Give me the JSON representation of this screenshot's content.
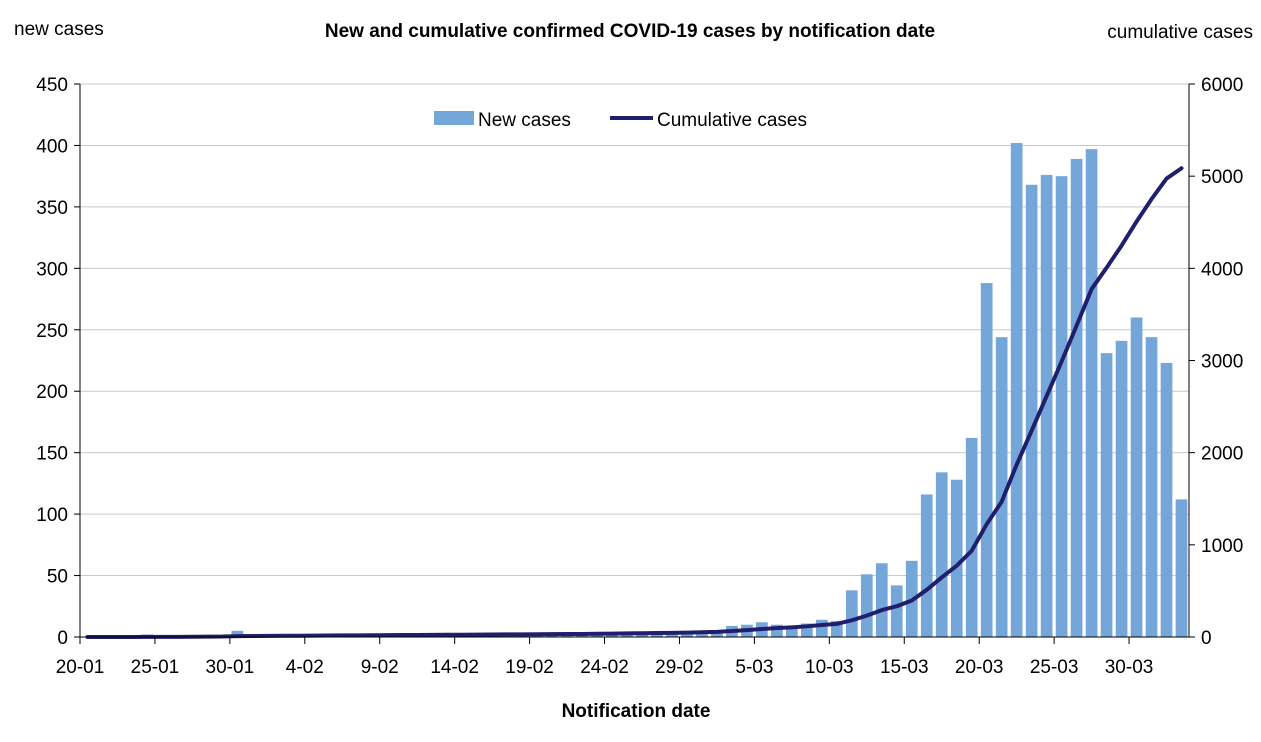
{
  "chart_data": {
    "type": "bar+line",
    "title": "New and cumulative confirmed COVID-19 cases by notification date",
    "xlabel": "Notification date",
    "ylabel_left": "new cases",
    "ylabel_right": "cumulative cases",
    "ylim_left": [
      0,
      450
    ],
    "ylim_right": [
      0,
      6000
    ],
    "yticks_left": [
      "0",
      "50",
      "100",
      "150",
      "200",
      "250",
      "300",
      "350",
      "400",
      "450"
    ],
    "yticks_right": [
      "0",
      "1000",
      "2000",
      "3000",
      "4000",
      "5000",
      "6000"
    ],
    "grid": true,
    "legend_position": "top-center",
    "x": [
      "20-01",
      "21-01",
      "22-01",
      "23-01",
      "24-01",
      "25-01",
      "26-01",
      "27-01",
      "28-01",
      "29-01",
      "30-01",
      "31-01",
      "01-02",
      "02-02",
      "03-02",
      "04-02",
      "05-02",
      "06-02",
      "07-02",
      "08-02",
      "09-02",
      "10-02",
      "11-02",
      "12-02",
      "13-02",
      "14-02",
      "15-02",
      "16-02",
      "17-02",
      "18-02",
      "19-02",
      "20-02",
      "21-02",
      "22-02",
      "23-02",
      "24-02",
      "25-02",
      "26-02",
      "27-02",
      "28-02",
      "29-02",
      "01-03",
      "02-03",
      "03-03",
      "04-03",
      "05-03",
      "06-03",
      "07-03",
      "08-03",
      "09-03",
      "10-03",
      "11-03",
      "12-03",
      "13-03",
      "14-03",
      "15-03",
      "16-03",
      "17-03",
      "18-03",
      "19-03",
      "20-03",
      "21-03",
      "22-03",
      "23-03",
      "24-03",
      "25-03",
      "26-03",
      "27-03",
      "28-03",
      "29-03",
      "30-03",
      "31-03",
      "01-04",
      "02-04"
    ],
    "xtick_labels": [
      "20-01",
      "25-01",
      "30-01",
      "4-02",
      "9-02",
      "14-02",
      "19-02",
      "24-02",
      "29-02",
      "5-03",
      "10-03",
      "15-03",
      "20-03",
      "25-03",
      "30-03"
    ],
    "series": [
      {
        "name": "New cases",
        "type": "bar",
        "axis": "left",
        "color": "#75a6d9",
        "values": [
          0,
          0,
          0,
          0,
          2,
          0,
          0,
          1,
          1,
          1,
          5,
          1,
          1,
          1,
          1,
          1,
          1,
          1,
          1,
          1,
          1,
          1,
          1,
          1,
          1,
          1,
          1,
          1,
          1,
          1,
          1,
          1,
          1,
          1,
          2,
          2,
          2,
          2,
          2,
          2,
          2,
          4,
          5,
          9,
          10,
          12,
          10,
          8,
          11,
          14,
          13,
          38,
          51,
          60,
          42,
          62,
          116,
          134,
          128,
          162,
          288,
          244,
          402,
          368,
          376,
          375,
          389,
          397,
          231,
          241,
          260,
          244,
          223,
          112
        ]
      },
      {
        "name": "Cumulative cases",
        "type": "line",
        "axis": "right",
        "color": "#1f1f6e",
        "values": [
          0,
          0,
          0,
          0,
          2,
          2,
          2,
          3,
          4,
          5,
          10,
          11,
          12,
          13,
          14,
          15,
          16,
          17,
          18,
          19,
          20,
          21,
          22,
          23,
          24,
          25,
          26,
          27,
          28,
          29,
          30,
          31,
          32,
          33,
          35,
          37,
          39,
          41,
          43,
          45,
          47,
          51,
          56,
          65,
          75,
          87,
          97,
          105,
          116,
          130,
          143,
          181,
          232,
          292,
          334,
          396,
          512,
          646,
          774,
          936,
          1224,
          1468,
          1870,
          2238,
          2614,
          2989,
          3378,
          3775,
          4006,
          4247,
          4507,
          4751,
          4974,
          5086
        ]
      }
    ]
  }
}
